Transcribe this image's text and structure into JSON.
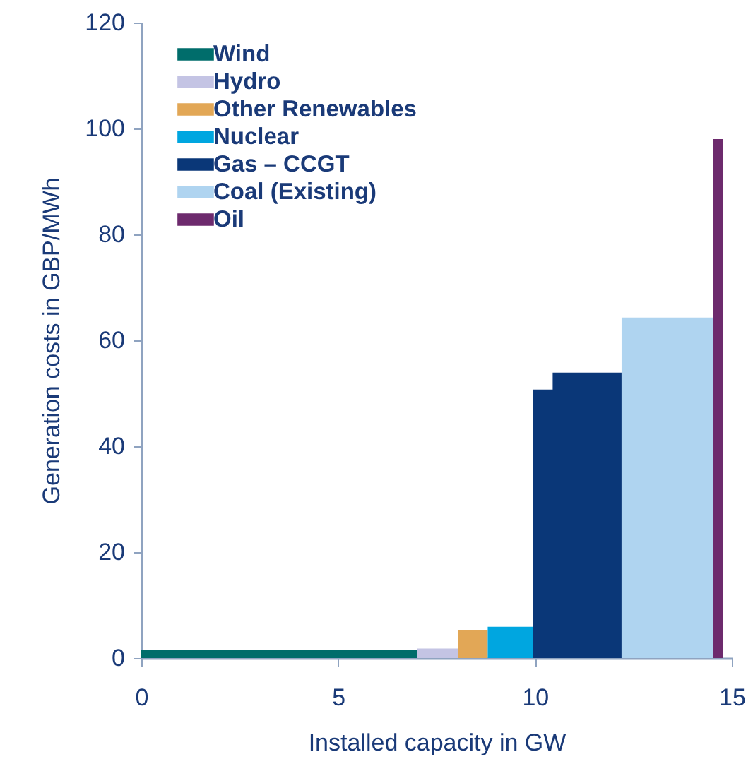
{
  "chart_data": {
    "type": "area",
    "xlabel": "Installed capacity in GW",
    "ylabel": "Generation costs in GBP/MWh",
    "xlim": [
      0,
      15
    ],
    "xticks": [
      0,
      5,
      10,
      15
    ],
    "ylim": [
      0,
      120
    ],
    "yticks": [
      0,
      20,
      40,
      60,
      80,
      100,
      120
    ],
    "grid": false,
    "legend": "top left",
    "series": [
      {
        "name": "Wind",
        "color": "#006d6b",
        "x": [
          0,
          7.0
        ],
        "values": [
          1.6,
          1.6
        ]
      },
      {
        "name": "Hydro",
        "color": "#c4c4e4",
        "x": [
          7.0,
          8.05
        ],
        "values": [
          1.8,
          1.8
        ]
      },
      {
        "name": "Other Renewables",
        "color": "#e2a756",
        "x": [
          8.05,
          8.8
        ],
        "values": [
          5.3,
          5.3
        ]
      },
      {
        "name": "Nuclear",
        "color": "#00a6e0",
        "x": [
          8.8,
          9.95
        ],
        "values": [
          5.9,
          5.9
        ]
      },
      {
        "name": "Gas – CCGT",
        "color": "#0a3778",
        "x": [
          9.95,
          10.45,
          10.45,
          12.2
        ],
        "values": [
          50.7,
          50.7,
          53.9,
          53.9
        ]
      },
      {
        "name": "Coal (Existing)",
        "color": "#afd4f0",
        "x": [
          12.2,
          14.53
        ],
        "values": [
          64.3,
          64.3
        ]
      },
      {
        "name": "Oil",
        "color": "#6d2a6d",
        "x": [
          14.53,
          14.78
        ],
        "values": [
          98,
          98
        ]
      }
    ]
  }
}
